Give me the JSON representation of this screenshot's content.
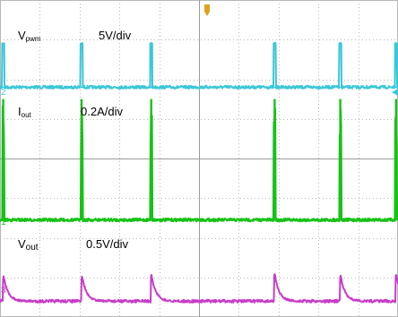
{
  "chart_data": {
    "type": "line",
    "title": "",
    "xlabel": "",
    "ylabel": "",
    "grid": true,
    "grid_divisions": {
      "x": 10,
      "y": 8
    },
    "colors": {
      "background": "#ffffff",
      "grid": "#b8b8b8",
      "vpwm": "#3cc7d8",
      "iout": "#17c217",
      "vout": "#c83cc8",
      "trigger": "#e0a020"
    },
    "pulse_times_div": [
      0.08,
      2.05,
      3.8,
      6.9,
      8.55,
      9.95
    ],
    "series": [
      {
        "name": "Vpwm",
        "label_main": "V",
        "label_sub": "pwm",
        "scale": "5V/div",
        "ground_marker": "2",
        "baseline_div": 2.2,
        "pulse_height_div": 1.1
      },
      {
        "name": "Iout",
        "label_main": "I",
        "label_sub": "out",
        "scale": "0.2A/div",
        "ground_marker": "1",
        "baseline_div": 5.55,
        "pulse_height_div": 3.05
      },
      {
        "name": "Vout",
        "label_main": "V",
        "label_sub": "out",
        "scale": "0.5V/div",
        "ground_marker": "3",
        "baseline_div": 7.6,
        "pulse_height_div": 0.7
      }
    ]
  }
}
